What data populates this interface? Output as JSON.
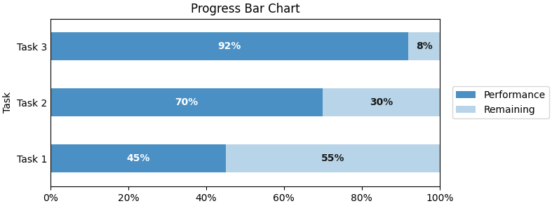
{
  "chart_data": {
    "type": "bar",
    "orientation": "horizontal",
    "stacked": true,
    "title": "Progress Bar Chart",
    "y_label": "Task",
    "categories": [
      "Task 1",
      "Task 2",
      "Task 3"
    ],
    "series": [
      {
        "name": "Performance",
        "color": "#4A90C4",
        "values": [
          0.45,
          0.7,
          0.92
        ],
        "value_labels": [
          "45%",
          "70%",
          "92%"
        ]
      },
      {
        "name": "Remaining",
        "color": "#B8D4E8",
        "values": [
          0.55,
          0.3,
          0.08
        ],
        "value_labels": [
          "55%",
          "30%",
          "8%"
        ]
      }
    ],
    "xlim": [
      0.0,
      1.0
    ],
    "xticks": [
      {
        "value": 0.0,
        "label": "0%"
      },
      {
        "value": 0.2,
        "label": "20%"
      },
      {
        "value": 0.4,
        "label": "40%"
      },
      {
        "value": 0.6,
        "label": "60%"
      },
      {
        "value": 0.8,
        "label": "80%"
      },
      {
        "value": 1.0,
        "label": "100%"
      }
    ],
    "data_labels": true,
    "grid": false,
    "legend": "center left"
  }
}
